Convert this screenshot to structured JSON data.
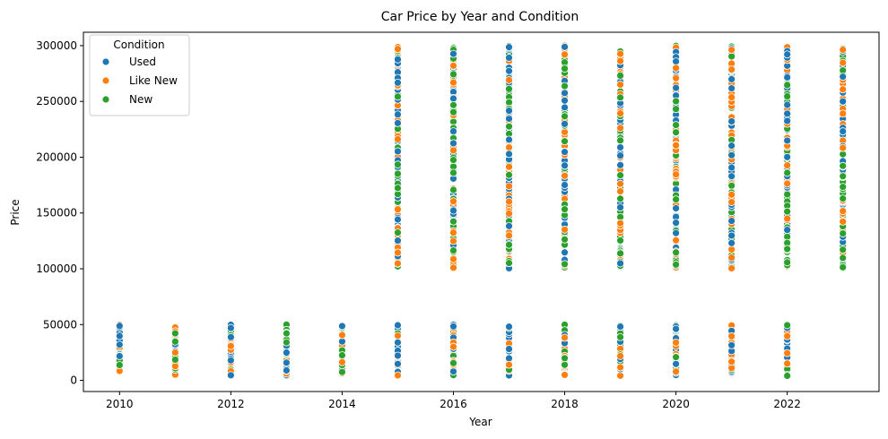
{
  "chart_data": {
    "type": "scatter",
    "title": "Car Price by Year and Condition",
    "xlabel": "Year",
    "ylabel": "Price",
    "xlim": [
      2009.35,
      2023.65
    ],
    "ylim": [
      -10000,
      312000
    ],
    "xticks": [
      2010,
      2012,
      2014,
      2016,
      2018,
      2020,
      2022
    ],
    "yticks": [
      0,
      50000,
      100000,
      150000,
      200000,
      250000,
      300000
    ],
    "grid": false,
    "legend": {
      "title": "Condition",
      "placement": "upper-left"
    },
    "series": [
      {
        "name": "Used",
        "color": "#1f77b4"
      },
      {
        "name": "Like New",
        "color": "#ff7f0e"
      },
      {
        "name": "New",
        "color": "#2ca02c"
      }
    ],
    "groups": [
      {
        "year": 2010,
        "low_range": [
          4000,
          50000
        ]
      },
      {
        "year": 2011,
        "low_range": [
          4000,
          50000
        ]
      },
      {
        "year": 2012,
        "low_range": [
          4000,
          50000
        ]
      },
      {
        "year": 2013,
        "low_range": [
          4000,
          50000
        ]
      },
      {
        "year": 2014,
        "low_range": [
          4000,
          50000
        ]
      },
      {
        "year": 2015,
        "low_range": [
          4000,
          50000
        ],
        "high_range": [
          100000,
          300000
        ]
      },
      {
        "year": 2016,
        "low_range": [
          4000,
          50000
        ],
        "high_range": [
          100000,
          300000
        ]
      },
      {
        "year": 2017,
        "low_range": [
          4000,
          50000
        ],
        "high_range": [
          100000,
          300000
        ]
      },
      {
        "year": 2018,
        "low_range": [
          4000,
          50000
        ],
        "high_range": [
          100000,
          300000
        ]
      },
      {
        "year": 2019,
        "low_range": [
          4000,
          50000
        ],
        "high_range": [
          100000,
          300000
        ]
      },
      {
        "year": 2020,
        "low_range": [
          4000,
          50000
        ],
        "high_range": [
          100000,
          300000
        ]
      },
      {
        "year": 2021,
        "low_range": [
          4000,
          50000
        ],
        "high_range": [
          100000,
          300000
        ]
      },
      {
        "year": 2022,
        "low_range": [
          4000,
          50000
        ],
        "high_range": [
          100000,
          300000
        ]
      },
      {
        "year": 2023,
        "high_range": [
          100000,
          300000
        ]
      }
    ]
  }
}
